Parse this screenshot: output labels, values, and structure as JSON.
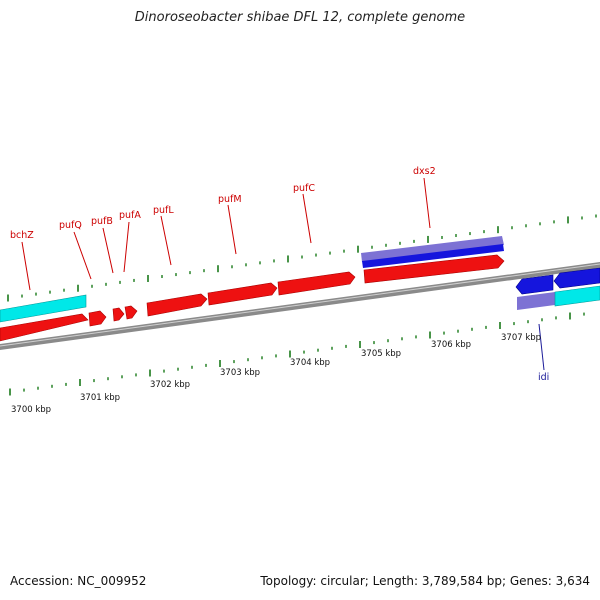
{
  "title": "Dinoroseobacter shibae DFL 12, complete genome",
  "footer": {
    "accession": "Accession: NC_009952",
    "summary": "Topology: circular; Length: 3,789,584 bp; Genes: 3,634"
  },
  "colors": {
    "forward_cds": "#ee1111",
    "reverse_cds": "#1515dd",
    "forward_other": "#00eeee",
    "reverse_other": "#00eeee",
    "gc_band": "#7a6fd0",
    "backbone": "#888888",
    "tick": "#1a7a1a",
    "label_red": "#cc0000",
    "label_blue": "#1a1a99"
  },
  "gene_labels": [
    {
      "text": "bchZ",
      "color": "red"
    },
    {
      "text": "pufQ",
      "color": "red"
    },
    {
      "text": "pufB",
      "color": "red"
    },
    {
      "text": "pufA",
      "color": "red"
    },
    {
      "text": "pufL",
      "color": "red"
    },
    {
      "text": "pufM",
      "color": "red"
    },
    {
      "text": "pufC",
      "color": "red"
    },
    {
      "text": "dxs2",
      "color": "red"
    },
    {
      "text": "idi",
      "color": "blue"
    }
  ],
  "kbp_labels": [
    "3700 kbp",
    "3701 kbp",
    "3702 kbp",
    "3703 kbp",
    "3704 kbp",
    "3705 kbp",
    "3706 kbp",
    "3707 kbp"
  ]
}
